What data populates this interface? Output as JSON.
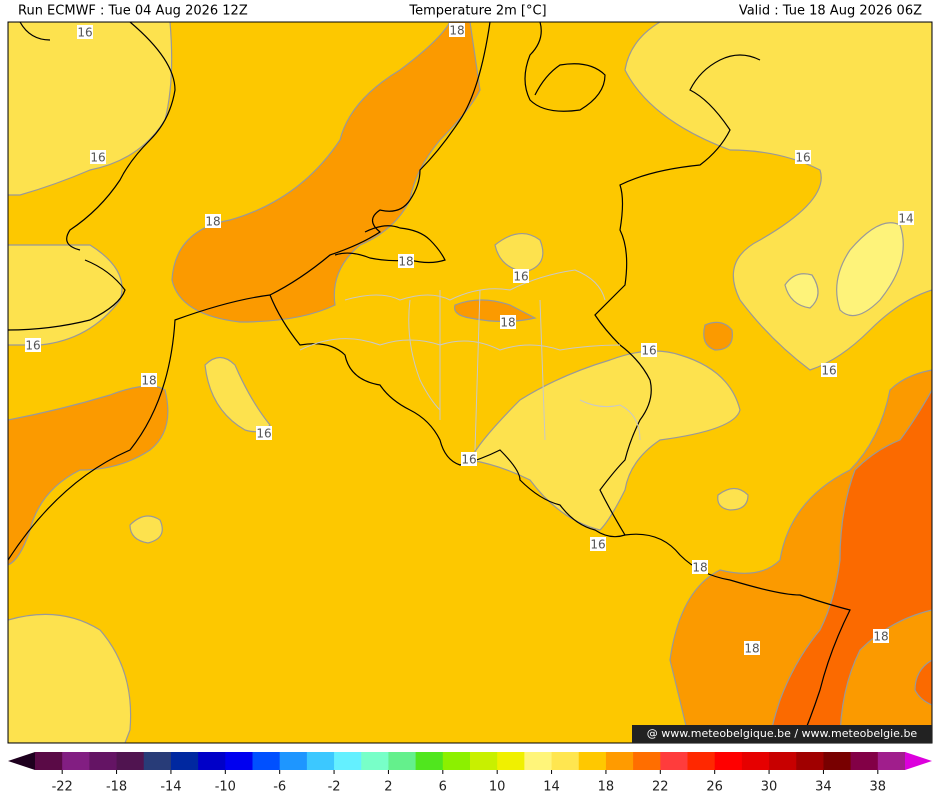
{
  "header": {
    "run": "Run ECMWF : Tue 04 Aug 2026 12Z",
    "title": "Temperature 2m [°C]",
    "valid": "Valid : Tue 18 Aug 2026 06Z"
  },
  "contour_labels": [
    "16",
    "18",
    "16",
    "18",
    "18",
    "16",
    "18",
    "16",
    "18",
    "16",
    "16",
    "16",
    "16",
    "14",
    "16",
    "16",
    "18",
    "18",
    "18"
  ],
  "watermark": "@ www.meteobelgique.be / www.meteobelgie.be",
  "colorbar": {
    "range": [
      -24,
      40
    ],
    "ticks": [
      -22,
      -18,
      -14,
      -10,
      -6,
      -2,
      2,
      6,
      10,
      14,
      18,
      22,
      26,
      30,
      34,
      38
    ],
    "colors": [
      "#5a0a46",
      "#821e82",
      "#641464",
      "#501450",
      "#283c78",
      "#0028a0",
      "#0000c8",
      "#0000f0",
      "#0050ff",
      "#1e96ff",
      "#3cc8ff",
      "#64f0ff",
      "#78ffc8",
      "#64f08c",
      "#50e61e",
      "#8cf000",
      "#c8f000",
      "#f0f000",
      "#fff57a",
      "#ffe650",
      "#ffc800",
      "#ff9b00",
      "#ff6e00",
      "#ff3c3c",
      "#ff2800",
      "#ff0000",
      "#e60000",
      "#c80000",
      "#a00000",
      "#780000",
      "#820046",
      "#a01e8c"
    ],
    "under_color": "#1e001e",
    "over_color": "#dc00dc"
  }
}
